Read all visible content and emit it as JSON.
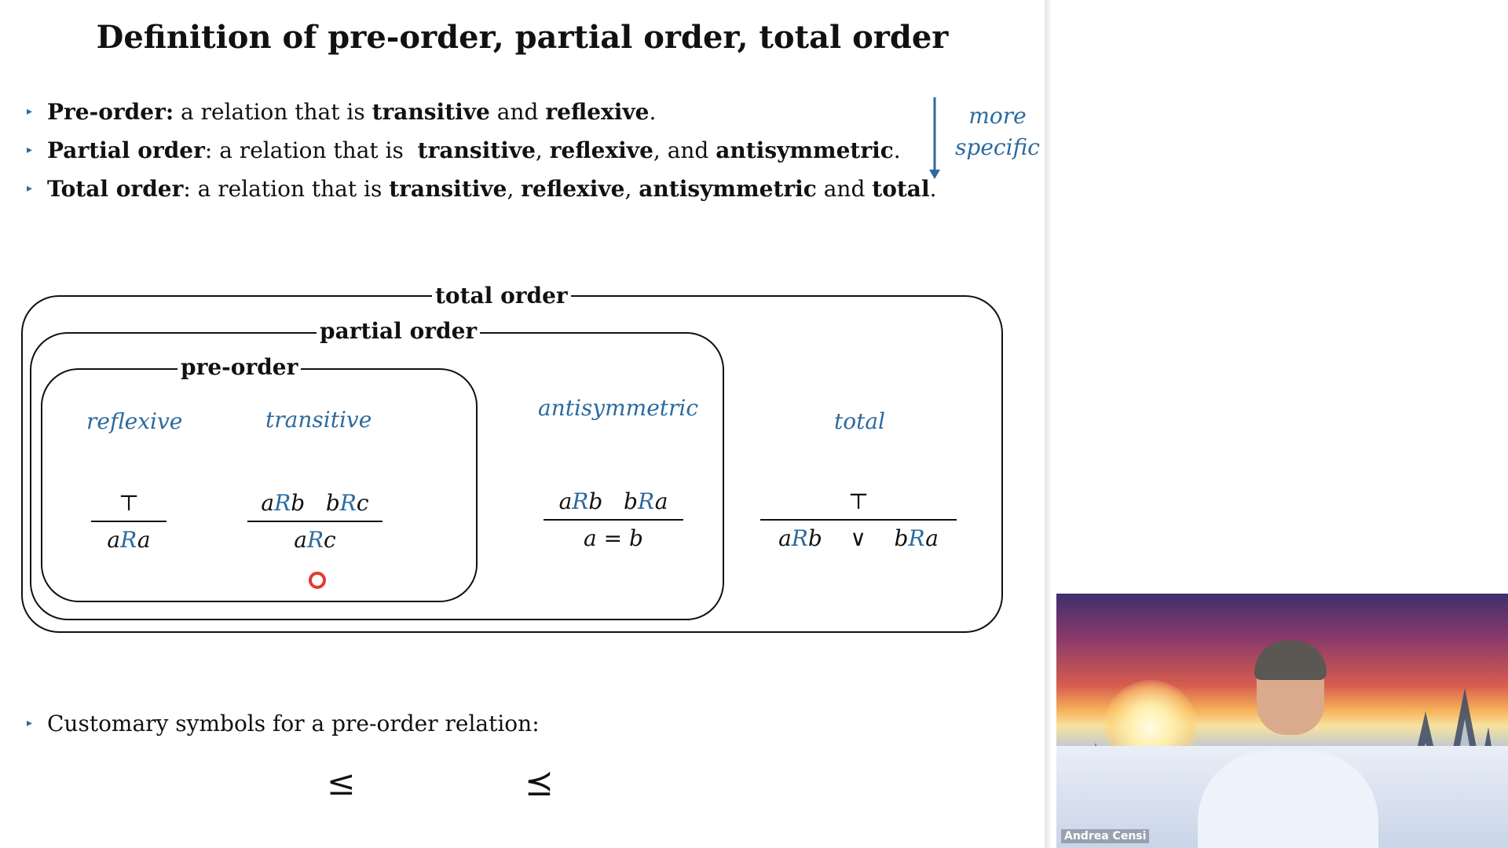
{
  "slide": {
    "title": "Definition of pre-order, partial order, total order",
    "bullets": [
      {
        "term": "Pre-order:",
        "text1": " a relation that is ",
        "b1": "transitive",
        "text2": " and ",
        "b2": "reflexive",
        "text3": "."
      },
      {
        "term": "Partial order",
        "text1": ": a relation that is  ",
        "b1": "transitive",
        "text2": ", ",
        "b2": "reflexive",
        "text3": ", and ",
        "b3": "antisymmetric",
        "text4": "."
      },
      {
        "term": "Total order",
        "text1": ": a relation that is ",
        "b1": "transitive",
        "text2": ", ",
        "b2": "reflexive",
        "text3": ", ",
        "b3": "antisymmetric",
        "text4": " and ",
        "b4": "total",
        "text5": "."
      }
    ],
    "more_specific": {
      "line1": "more",
      "line2": "specific"
    },
    "diagram": {
      "total_order_label": "total order",
      "partial_order_label": "partial order",
      "pre_order_label": "pre-order",
      "reflexive": {
        "name": "reflexive",
        "top": "⊤",
        "bottom": {
          "a": "a",
          "R": "R",
          "b": "a"
        }
      },
      "transitive": {
        "name": "transitive",
        "top": {
          "p1a": "a",
          "p1R": "R",
          "p1b": "b",
          "p2a": "b",
          "p2R": "R",
          "p2b": "c"
        },
        "bottom": {
          "a": "a",
          "R": "R",
          "b": "c"
        }
      },
      "antisymmetric": {
        "name": "antisymmetric",
        "top": {
          "p1a": "a",
          "p1R": "R",
          "p1b": "b",
          "p2a": "b",
          "p2R": "R",
          "p2b": "a"
        },
        "bottom": "a = b"
      },
      "total": {
        "name": "total",
        "top": "⊤",
        "bottom": {
          "p1a": "a",
          "p1R": "R",
          "p1b": "b",
          "or": "∨",
          "p2a": "b",
          "p2R": "R",
          "p2b": "a"
        }
      }
    },
    "customary": {
      "text": "Customary symbols for a pre-order relation:",
      "sym1": "≤",
      "sym2": "⪯"
    }
  },
  "video": {
    "participant_name": "Andrea Censi"
  },
  "colors": {
    "accent": "#2c6a9e",
    "laser": "#e23b2f"
  }
}
